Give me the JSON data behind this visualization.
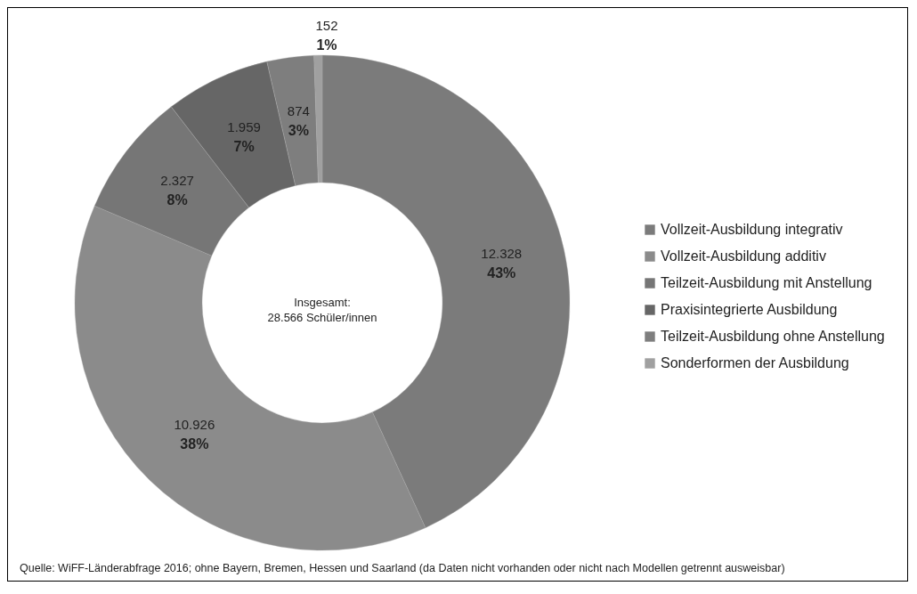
{
  "chart_data": {
    "type": "donut",
    "categories": [
      "Vollzeit-Ausbildung integrativ",
      "Vollzeit-Ausbildung additiv",
      "Teilzeit-Ausbildung mit Anstellung",
      "Praxisintegrierte Ausbildung",
      "Teilzeit-Ausbildung ohne Anstellung",
      "Sonderformen der Ausbildung"
    ],
    "values": [
      12328,
      10926,
      2327,
      1959,
      874,
      152
    ],
    "colors": [
      "#7b7b7b",
      "#8b8b8b",
      "#767676",
      "#666666",
      "#7e7e7e",
      "#a0a0a0"
    ],
    "value_labels": [
      "12.328",
      "10.926",
      "2.327",
      "1.959",
      "874",
      "152"
    ],
    "legend": "right",
    "annotations": [
      "Insgesamt:\n28.566 Schüler/innen",
      "Quelle: WiFF-Länderabfrage 2016; ohne Bayern, Bremen, Hessen und Saarland (da Daten nicht vorhanden oder nicht nach Modellen getrennt ausweisbar)",
      {
        "text": "43%",
        "x": "Vollzeit-Ausbildung integrativ"
      },
      {
        "text": "38%",
        "x": "Vollzeit-Ausbildung additiv"
      },
      {
        "text": "8%",
        "x": "Teilzeit-Ausbildung mit Anstellung"
      },
      {
        "text": "7%",
        "x": "Praxisintegrierte Ausbildung"
      },
      {
        "text": "3%",
        "x": "Teilzeit-Ausbildung ohne Anstellung"
      },
      {
        "text": "1%",
        "x": "Sonderformen der Ausbildung"
      }
    ]
  }
}
